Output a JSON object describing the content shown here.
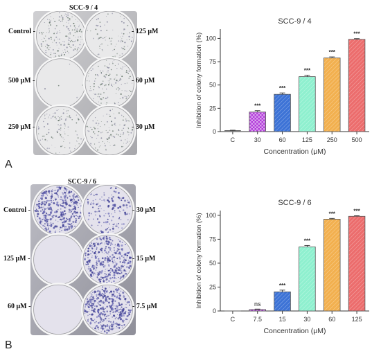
{
  "panels": [
    {
      "letter": "A",
      "plate": {
        "title": "SCC-9 / 4",
        "labels_left": [
          "Control -",
          "500 μM -",
          "250 μM -"
        ],
        "labels_right": [
          "- 125 μM",
          "- 60 μM",
          "- 30 μM"
        ],
        "style": "sparse"
      }
    },
    {
      "letter": "B",
      "plate": {
        "title": "SCC-9 / 6",
        "labels_left": [
          "Control -",
          "125 μM -",
          "60 μM -"
        ],
        "labels_right": [
          "- 30 μM",
          "- 15 μM",
          "- 7.5 μM"
        ],
        "style": "dense"
      }
    }
  ],
  "chart_data": [
    {
      "type": "bar",
      "title": "SCC-9 / 4",
      "xlabel": "Concentration (μM)",
      "ylabel": "Inhibition of colony formation (%)",
      "categories": [
        "C",
        "30",
        "60",
        "125",
        "250",
        "500"
      ],
      "values": [
        1,
        21,
        40,
        59,
        79,
        99
      ],
      "errors": [
        0.5,
        1.5,
        1.5,
        1.5,
        1.2,
        0.8
      ],
      "significance": [
        "",
        "***",
        "***",
        "***",
        "***",
        "***"
      ],
      "ylim": [
        0,
        110
      ],
      "yticks": [
        0,
        25,
        50,
        75,
        100
      ],
      "colors": [
        "#ffffff",
        "#b23bd9",
        "#3d73d6",
        "#8ff0cf",
        "#f2b04f",
        "#ec6d6d"
      ],
      "patterns": [
        "none",
        "checker",
        "diag",
        "diag",
        "diag",
        "diag"
      ]
    },
    {
      "type": "bar",
      "title": "SCC-9 / 6",
      "xlabel": "Concentration (μM)",
      "ylabel": "Inhibition of colony formation (%)",
      "categories": [
        "C",
        "7.5",
        "15",
        "30",
        "60",
        "125"
      ],
      "values": [
        0,
        1.5,
        20,
        67,
        96,
        99
      ],
      "errors": [
        0,
        0.5,
        1.8,
        1.5,
        0.8,
        0.6
      ],
      "significance": [
        "",
        "ns",
        "***",
        "***",
        "***",
        "***"
      ],
      "ylim": [
        0,
        105
      ],
      "yticks": [
        0,
        25,
        50,
        75,
        100
      ],
      "colors": [
        "#ffffff",
        "#b23bd9",
        "#3d73d6",
        "#8ff0cf",
        "#f2b04f",
        "#ec6d6d"
      ],
      "patterns": [
        "none",
        "checker",
        "diag",
        "diag",
        "diag",
        "diag"
      ]
    }
  ]
}
